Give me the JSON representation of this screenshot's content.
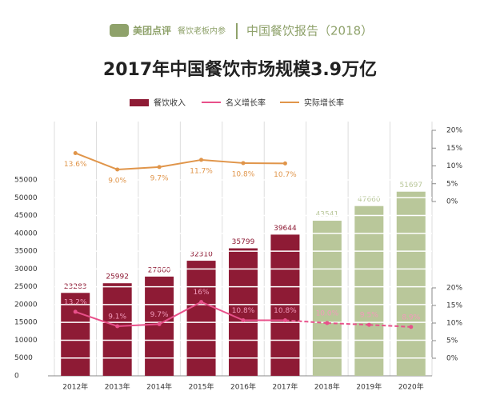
{
  "header": {
    "logo": "美团点评",
    "sub": "餐饮老板内参",
    "report": "中国餐饮报告（2018）"
  },
  "chart_data": {
    "type": "bar",
    "title": "2017年中国餐饮市场规模3.9万亿",
    "categories": [
      "2012年",
      "2013年",
      "2014年",
      "2015年",
      "2016年",
      "2017年",
      "2018年",
      "2019年",
      "2020年"
    ],
    "series": [
      {
        "name": "餐饮收入",
        "type": "bar",
        "values": [
          23283,
          25992,
          27860,
          32310,
          35799,
          39644,
          43541,
          47660,
          51697
        ],
        "colors": [
          "#8e1b35",
          "#8e1b35",
          "#8e1b35",
          "#8e1b35",
          "#8e1b35",
          "#8e1b35",
          "#b9c79a",
          "#b9c79a",
          "#b9c79a"
        ]
      },
      {
        "name": "名义增长率",
        "type": "line",
        "axis": "y2",
        "color": "#e8508a",
        "values": [
          13.2,
          9.1,
          9.7,
          16,
          10.8,
          10.8,
          10.0,
          9.5,
          8.9
        ],
        "value_labels": [
          "13.2%",
          "9.1%",
          "9.7%",
          "16%",
          "10.8%",
          "10.8%",
          "10.0%",
          "9.5%",
          "8.9%"
        ]
      },
      {
        "name": "实际增长率",
        "type": "line",
        "axis": "y3",
        "color": "#e0954a",
        "values": [
          13.6,
          9.0,
          9.7,
          11.7,
          10.8,
          10.7,
          null,
          null,
          null
        ],
        "value_labels": [
          "13.6%",
          "9.0%",
          "9.7%",
          "11.7%",
          "10.8%",
          "10.7%",
          null,
          null,
          null
        ]
      }
    ],
    "ylim": [
      0,
      55000
    ],
    "yticks": [
      0,
      5000,
      10000,
      15000,
      20000,
      25000,
      30000,
      35000,
      40000,
      45000,
      50000,
      55000
    ],
    "y2lim": [
      0,
      20
    ],
    "y2ticks": [
      {
        "value": 0,
        "label": "0%"
      },
      {
        "value": 5,
        "label": "5%"
      },
      {
        "value": 10,
        "label": "10%"
      },
      {
        "value": 15,
        "label": "15%"
      },
      {
        "value": 20,
        "label": "20%"
      }
    ],
    "y3lim": [
      0,
      20
    ],
    "y3ticks": [
      {
        "value": 0,
        "label": "0%"
      },
      {
        "value": 5,
        "label": "5%"
      },
      {
        "value": 10,
        "label": "10%"
      },
      {
        "value": 15,
        "label": "15%"
      },
      {
        "value": 20,
        "label": "20%"
      }
    ],
    "grid": true
  }
}
